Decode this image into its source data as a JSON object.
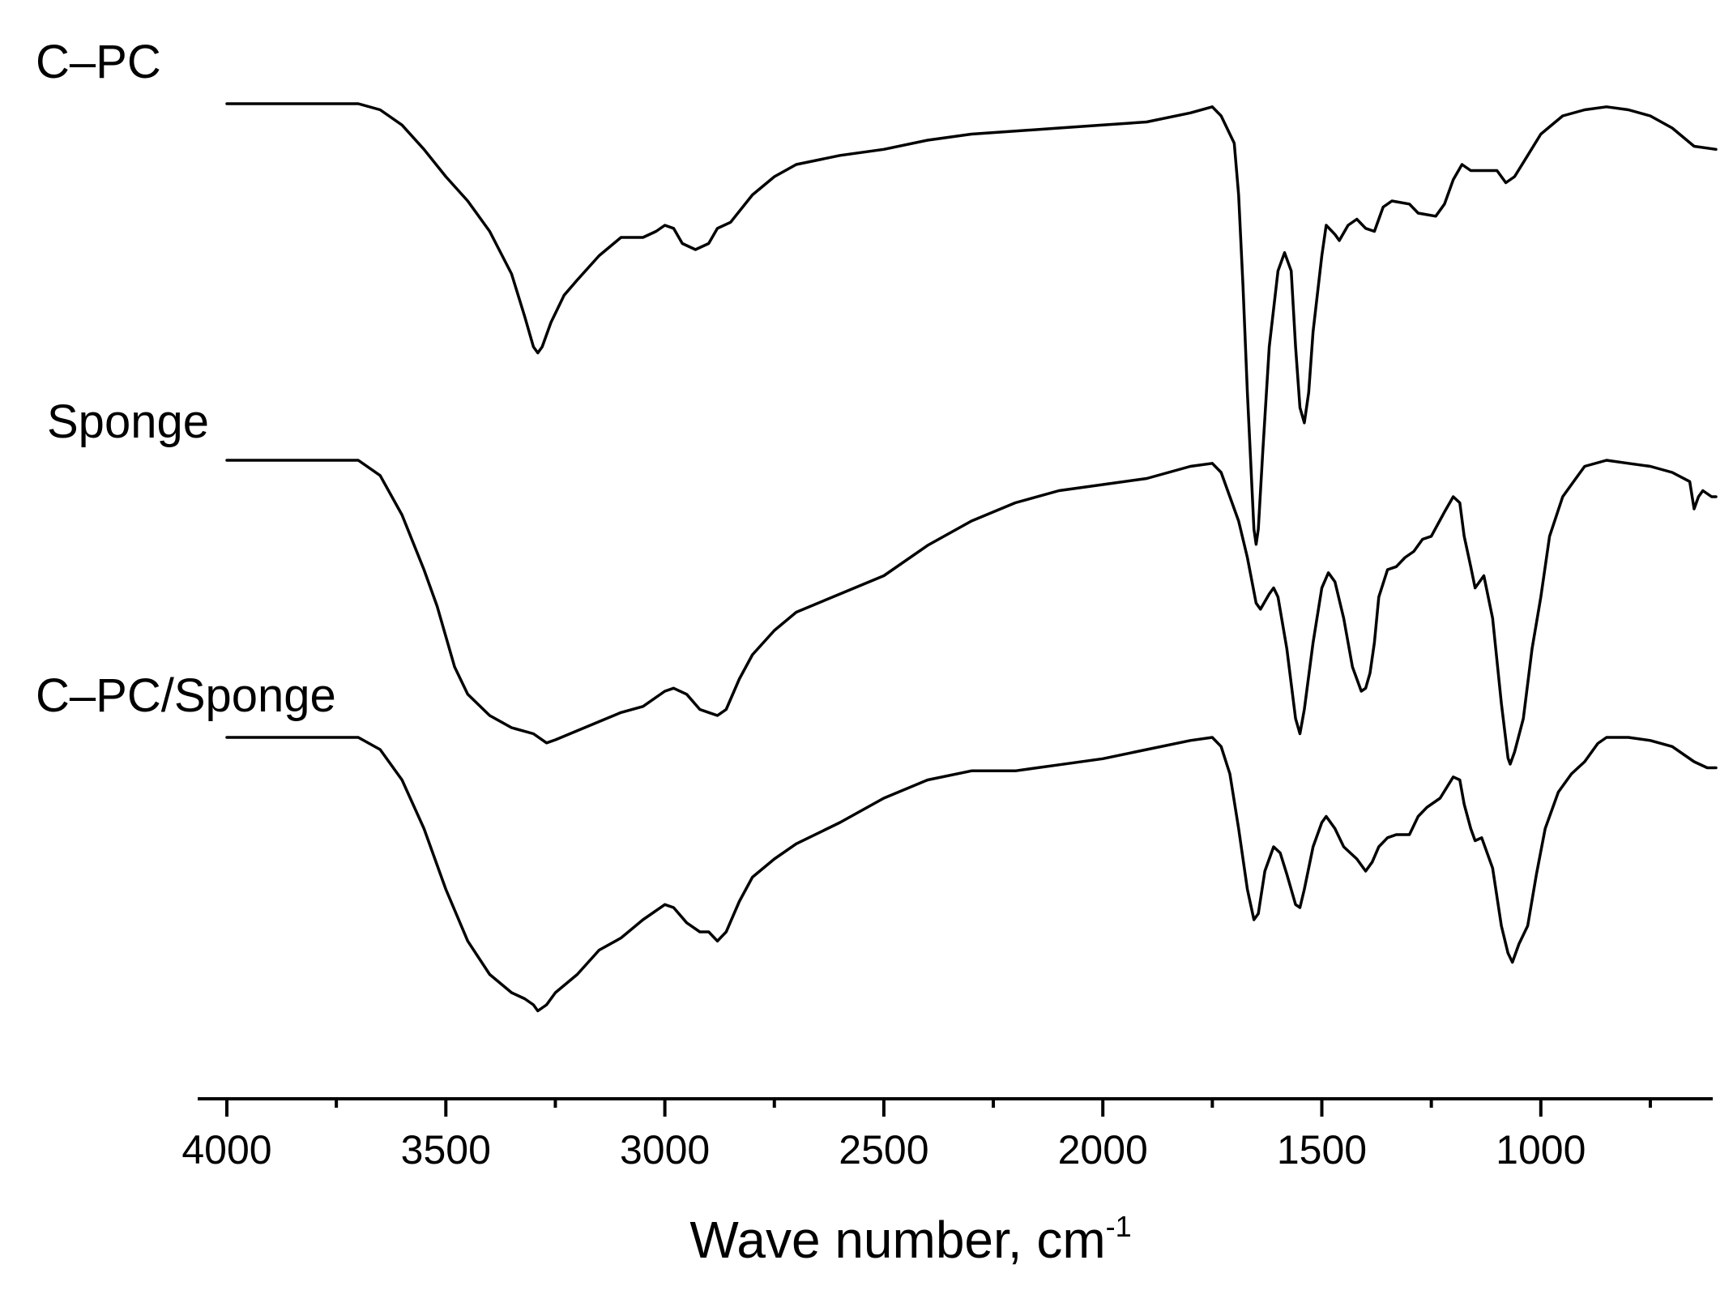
{
  "chart_data": {
    "type": "line",
    "title": "",
    "xlabel": "Wave number, cm",
    "xlabel_superscript": "-1",
    "ylabel": "",
    "xlim": [
      4000,
      600
    ],
    "x_reversed": true,
    "x_ticks": [
      {
        "value": 4000,
        "label": "4000"
      },
      {
        "value": 3500,
        "label": "3500"
      },
      {
        "value": 3000,
        "label": "3000"
      },
      {
        "value": 2500,
        "label": "2500"
      },
      {
        "value": 2000,
        "label": "2000"
      },
      {
        "value": 1500,
        "label": "1500"
      },
      {
        "value": 1000,
        "label": "1000"
      }
    ],
    "x_minor_ticks": [
      3750,
      3250,
      2750,
      2250,
      1750,
      1250,
      750
    ],
    "y_axis_shown": false,
    "y_units": "arbitrary, spectra offset vertically",
    "grid": false,
    "legend": "none; series labels above each curve",
    "series": [
      {
        "name": "C–PC",
        "points": [
          [
            4000,
            0.0
          ],
          [
            3700,
            0.0
          ],
          [
            3650,
            -0.02
          ],
          [
            3600,
            -0.07
          ],
          [
            3550,
            -0.15
          ],
          [
            3500,
            -0.24
          ],
          [
            3450,
            -0.32
          ],
          [
            3400,
            -0.42
          ],
          [
            3350,
            -0.56
          ],
          [
            3320,
            -0.7
          ],
          [
            3300,
            -0.8
          ],
          [
            3290,
            -0.82
          ],
          [
            3280,
            -0.8
          ],
          [
            3260,
            -0.72
          ],
          [
            3230,
            -0.63
          ],
          [
            3200,
            -0.58
          ],
          [
            3150,
            -0.5
          ],
          [
            3100,
            -0.44
          ],
          [
            3050,
            -0.44
          ],
          [
            3020,
            -0.42
          ],
          [
            3000,
            -0.4
          ],
          [
            2980,
            -0.41
          ],
          [
            2960,
            -0.46
          ],
          [
            2930,
            -0.48
          ],
          [
            2900,
            -0.46
          ],
          [
            2880,
            -0.41
          ],
          [
            2850,
            -0.39
          ],
          [
            2800,
            -0.3
          ],
          [
            2750,
            -0.24
          ],
          [
            2700,
            -0.2
          ],
          [
            2600,
            -0.17
          ],
          [
            2500,
            -0.15
          ],
          [
            2400,
            -0.12
          ],
          [
            2300,
            -0.1
          ],
          [
            2200,
            -0.09
          ],
          [
            2100,
            -0.08
          ],
          [
            2000,
            -0.07
          ],
          [
            1900,
            -0.06
          ],
          [
            1800,
            -0.03
          ],
          [
            1750,
            -0.01
          ],
          [
            1730,
            -0.04
          ],
          [
            1700,
            -0.13
          ],
          [
            1690,
            -0.3
          ],
          [
            1680,
            -0.6
          ],
          [
            1670,
            -0.95
          ],
          [
            1660,
            -1.25
          ],
          [
            1655,
            -1.4
          ],
          [
            1650,
            -1.45
          ],
          [
            1645,
            -1.4
          ],
          [
            1635,
            -1.15
          ],
          [
            1620,
            -0.8
          ],
          [
            1600,
            -0.55
          ],
          [
            1585,
            -0.49
          ],
          [
            1570,
            -0.55
          ],
          [
            1560,
            -0.8
          ],
          [
            1550,
            -1.0
          ],
          [
            1540,
            -1.05
          ],
          [
            1530,
            -0.95
          ],
          [
            1520,
            -0.75
          ],
          [
            1500,
            -0.5
          ],
          [
            1490,
            -0.4
          ],
          [
            1470,
            -0.43
          ],
          [
            1460,
            -0.45
          ],
          [
            1440,
            -0.4
          ],
          [
            1420,
            -0.38
          ],
          [
            1400,
            -0.41
          ],
          [
            1380,
            -0.42
          ],
          [
            1360,
            -0.34
          ],
          [
            1340,
            -0.32
          ],
          [
            1300,
            -0.33
          ],
          [
            1280,
            -0.36
          ],
          [
            1240,
            -0.37
          ],
          [
            1220,
            -0.33
          ],
          [
            1200,
            -0.25
          ],
          [
            1180,
            -0.2
          ],
          [
            1160,
            -0.22
          ],
          [
            1130,
            -0.22
          ],
          [
            1100,
            -0.22
          ],
          [
            1080,
            -0.26
          ],
          [
            1060,
            -0.24
          ],
          [
            1030,
            -0.17
          ],
          [
            1000,
            -0.1
          ],
          [
            950,
            -0.04
          ],
          [
            900,
            -0.02
          ],
          [
            850,
            -0.01
          ],
          [
            800,
            -0.02
          ],
          [
            750,
            -0.04
          ],
          [
            700,
            -0.08
          ],
          [
            650,
            -0.14
          ],
          [
            600,
            -0.15
          ]
        ]
      },
      {
        "name": "Sponge",
        "points": [
          [
            4000,
            0.0
          ],
          [
            3700,
            0.0
          ],
          [
            3650,
            -0.05
          ],
          [
            3600,
            -0.18
          ],
          [
            3550,
            -0.36
          ],
          [
            3520,
            -0.48
          ],
          [
            3500,
            -0.58
          ],
          [
            3480,
            -0.68
          ],
          [
            3450,
            -0.77
          ],
          [
            3400,
            -0.84
          ],
          [
            3350,
            -0.88
          ],
          [
            3300,
            -0.9
          ],
          [
            3270,
            -0.93
          ],
          [
            3250,
            -0.92
          ],
          [
            3200,
            -0.89
          ],
          [
            3150,
            -0.86
          ],
          [
            3100,
            -0.83
          ],
          [
            3050,
            -0.81
          ],
          [
            3000,
            -0.76
          ],
          [
            2980,
            -0.75
          ],
          [
            2950,
            -0.77
          ],
          [
            2920,
            -0.82
          ],
          [
            2900,
            -0.83
          ],
          [
            2880,
            -0.84
          ],
          [
            2860,
            -0.82
          ],
          [
            2830,
            -0.72
          ],
          [
            2800,
            -0.64
          ],
          [
            2750,
            -0.56
          ],
          [
            2700,
            -0.5
          ],
          [
            2600,
            -0.44
          ],
          [
            2500,
            -0.38
          ],
          [
            2400,
            -0.28
          ],
          [
            2300,
            -0.2
          ],
          [
            2200,
            -0.14
          ],
          [
            2100,
            -0.1
          ],
          [
            2000,
            -0.08
          ],
          [
            1900,
            -0.06
          ],
          [
            1800,
            -0.02
          ],
          [
            1750,
            -0.01
          ],
          [
            1730,
            -0.04
          ],
          [
            1710,
            -0.12
          ],
          [
            1690,
            -0.2
          ],
          [
            1670,
            -0.32
          ],
          [
            1650,
            -0.47
          ],
          [
            1640,
            -0.49
          ],
          [
            1620,
            -0.44
          ],
          [
            1610,
            -0.42
          ],
          [
            1600,
            -0.45
          ],
          [
            1580,
            -0.62
          ],
          [
            1560,
            -0.85
          ],
          [
            1550,
            -0.9
          ],
          [
            1540,
            -0.82
          ],
          [
            1520,
            -0.6
          ],
          [
            1500,
            -0.42
          ],
          [
            1485,
            -0.37
          ],
          [
            1470,
            -0.4
          ],
          [
            1450,
            -0.52
          ],
          [
            1430,
            -0.68
          ],
          [
            1410,
            -0.76
          ],
          [
            1400,
            -0.75
          ],
          [
            1390,
            -0.7
          ],
          [
            1380,
            -0.6
          ],
          [
            1370,
            -0.45
          ],
          [
            1350,
            -0.36
          ],
          [
            1330,
            -0.35
          ],
          [
            1310,
            -0.32
          ],
          [
            1290,
            -0.3
          ],
          [
            1270,
            -0.26
          ],
          [
            1250,
            -0.25
          ],
          [
            1220,
            -0.17
          ],
          [
            1200,
            -0.12
          ],
          [
            1185,
            -0.14
          ],
          [
            1175,
            -0.25
          ],
          [
            1160,
            -0.35
          ],
          [
            1150,
            -0.42
          ],
          [
            1140,
            -0.4
          ],
          [
            1130,
            -0.38
          ],
          [
            1110,
            -0.52
          ],
          [
            1090,
            -0.8
          ],
          [
            1075,
            -0.98
          ],
          [
            1070,
            -1.0
          ],
          [
            1060,
            -0.96
          ],
          [
            1040,
            -0.85
          ],
          [
            1020,
            -0.62
          ],
          [
            1000,
            -0.45
          ],
          [
            980,
            -0.25
          ],
          [
            950,
            -0.12
          ],
          [
            920,
            -0.06
          ],
          [
            900,
            -0.02
          ],
          [
            850,
            -0.0
          ],
          [
            800,
            -0.01
          ],
          [
            750,
            -0.02
          ],
          [
            700,
            -0.04
          ],
          [
            660,
            -0.07
          ],
          [
            650,
            -0.16
          ],
          [
            640,
            -0.12
          ],
          [
            630,
            -0.1
          ],
          [
            610,
            -0.12
          ],
          [
            600,
            -0.12
          ]
        ]
      },
      {
        "name": "C–PC/Sponge",
        "points": [
          [
            4000,
            0.0
          ],
          [
            3700,
            0.0
          ],
          [
            3650,
            -0.04
          ],
          [
            3600,
            -0.14
          ],
          [
            3550,
            -0.3
          ],
          [
            3500,
            -0.5
          ],
          [
            3450,
            -0.67
          ],
          [
            3400,
            -0.78
          ],
          [
            3350,
            -0.84
          ],
          [
            3320,
            -0.86
          ],
          [
            3300,
            -0.88
          ],
          [
            3290,
            -0.9
          ],
          [
            3270,
            -0.88
          ],
          [
            3250,
            -0.84
          ],
          [
            3200,
            -0.78
          ],
          [
            3150,
            -0.7
          ],
          [
            3100,
            -0.66
          ],
          [
            3050,
            -0.6
          ],
          [
            3000,
            -0.55
          ],
          [
            2980,
            -0.56
          ],
          [
            2950,
            -0.61
          ],
          [
            2920,
            -0.64
          ],
          [
            2900,
            -0.64
          ],
          [
            2880,
            -0.67
          ],
          [
            2860,
            -0.64
          ],
          [
            2830,
            -0.54
          ],
          [
            2800,
            -0.46
          ],
          [
            2750,
            -0.4
          ],
          [
            2700,
            -0.35
          ],
          [
            2600,
            -0.28
          ],
          [
            2500,
            -0.2
          ],
          [
            2400,
            -0.14
          ],
          [
            2300,
            -0.11
          ],
          [
            2200,
            -0.11
          ],
          [
            2100,
            -0.09
          ],
          [
            2000,
            -0.07
          ],
          [
            1900,
            -0.04
          ],
          [
            1800,
            -0.01
          ],
          [
            1750,
            -0.0
          ],
          [
            1730,
            -0.03
          ],
          [
            1710,
            -0.12
          ],
          [
            1690,
            -0.3
          ],
          [
            1670,
            -0.5
          ],
          [
            1655,
            -0.6
          ],
          [
            1645,
            -0.58
          ],
          [
            1630,
            -0.44
          ],
          [
            1610,
            -0.36
          ],
          [
            1595,
            -0.38
          ],
          [
            1580,
            -0.45
          ],
          [
            1560,
            -0.55
          ],
          [
            1550,
            -0.56
          ],
          [
            1540,
            -0.5
          ],
          [
            1520,
            -0.36
          ],
          [
            1500,
            -0.28
          ],
          [
            1490,
            -0.26
          ],
          [
            1470,
            -0.3
          ],
          [
            1450,
            -0.36
          ],
          [
            1420,
            -0.4
          ],
          [
            1400,
            -0.44
          ],
          [
            1385,
            -0.41
          ],
          [
            1370,
            -0.36
          ],
          [
            1350,
            -0.33
          ],
          [
            1330,
            -0.32
          ],
          [
            1300,
            -0.32
          ],
          [
            1280,
            -0.26
          ],
          [
            1260,
            -0.23
          ],
          [
            1230,
            -0.2
          ],
          [
            1200,
            -0.13
          ],
          [
            1185,
            -0.14
          ],
          [
            1175,
            -0.22
          ],
          [
            1160,
            -0.3
          ],
          [
            1150,
            -0.34
          ],
          [
            1135,
            -0.33
          ],
          [
            1110,
            -0.43
          ],
          [
            1090,
            -0.62
          ],
          [
            1075,
            -0.71
          ],
          [
            1065,
            -0.74
          ],
          [
            1050,
            -0.68
          ],
          [
            1030,
            -0.62
          ],
          [
            1010,
            -0.45
          ],
          [
            990,
            -0.3
          ],
          [
            960,
            -0.18
          ],
          [
            930,
            -0.12
          ],
          [
            900,
            -0.08
          ],
          [
            870,
            -0.02
          ],
          [
            850,
            -0.0
          ],
          [
            800,
            -0.0
          ],
          [
            750,
            -0.01
          ],
          [
            700,
            -0.03
          ],
          [
            650,
            -0.08
          ],
          [
            620,
            -0.1
          ],
          [
            600,
            -0.1
          ]
        ]
      }
    ]
  }
}
